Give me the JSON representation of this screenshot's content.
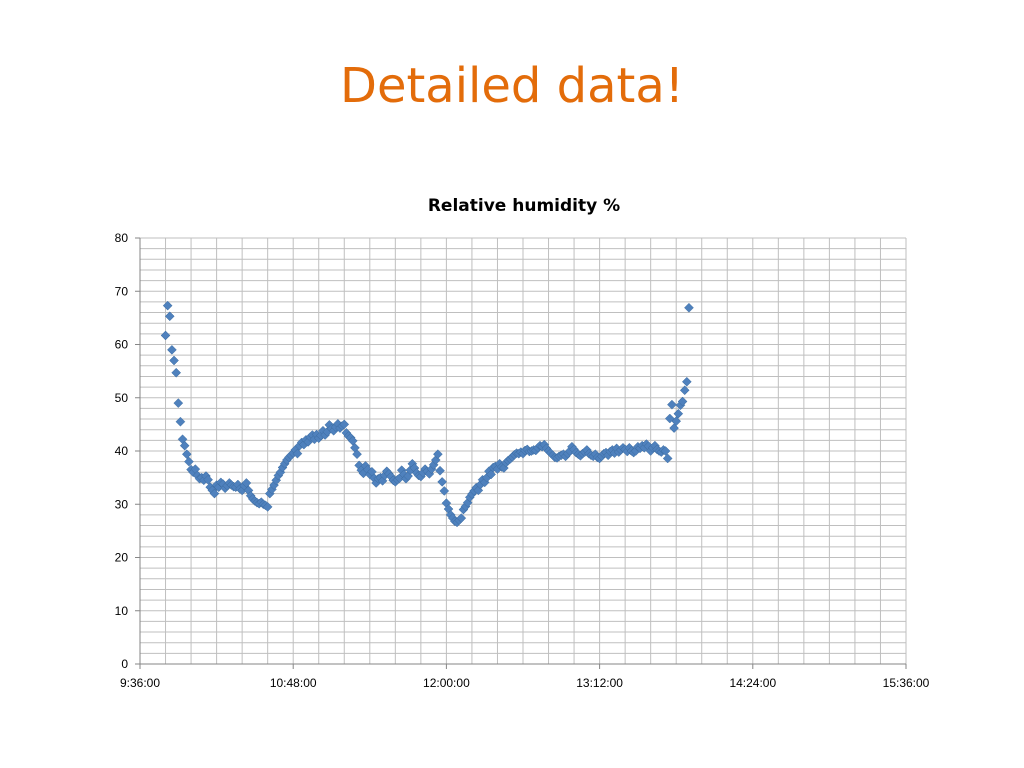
{
  "slide": {
    "title": "Detailed data!"
  },
  "colors": {
    "title": "#E36C0A",
    "marker": "#4F81BD",
    "grid": "#BFBFBF",
    "axis": "#868686"
  },
  "chart_data": {
    "type": "scatter",
    "title": "Relative humidity %",
    "xlabel": "",
    "ylabel": "",
    "marker": "diamond",
    "grid": true,
    "legend": "none",
    "xlim": [
      "9:36:00",
      "15:36:00"
    ],
    "ylim": [
      0,
      80
    ],
    "x_ticks": [
      "9:36:00",
      "10:48:00",
      "12:00:00",
      "13:12:00",
      "14:24:00",
      "15:36:00"
    ],
    "y_ticks": [
      "0",
      "10",
      "20",
      "30",
      "40",
      "50",
      "60",
      "70",
      "80"
    ],
    "series": [
      {
        "points": [
          [
            "9:48:00",
            61.7
          ],
          [
            "9:49:00",
            67.3
          ],
          [
            "9:50:00",
            65.3
          ],
          [
            "9:51:00",
            59.0
          ],
          [
            "9:52:00",
            57.0
          ],
          [
            "9:53:00",
            54.7
          ],
          [
            "9:54:00",
            49.0
          ],
          [
            "9:55:00",
            45.5
          ],
          [
            "9:56:00",
            42.2
          ],
          [
            "9:57:00",
            41.0
          ],
          [
            "9:58:00",
            39.4
          ],
          [
            "9:59:00",
            38.0
          ],
          [
            "10:00:00",
            36.5
          ],
          [
            "10:01:00",
            36.0
          ],
          [
            "10:02:00",
            36.6
          ],
          [
            "10:03:00",
            35.4
          ],
          [
            "10:04:00",
            34.8
          ],
          [
            "10:05:00",
            35.0
          ],
          [
            "10:06:00",
            34.5
          ],
          [
            "10:07:00",
            35.3
          ],
          [
            "10:08:00",
            34.6
          ],
          [
            "10:09:00",
            33.2
          ],
          [
            "10:10:00",
            32.6
          ],
          [
            "10:11:00",
            32.0
          ],
          [
            "10:12:00",
            33.6
          ],
          [
            "10:13:00",
            33.2
          ],
          [
            "10:14:00",
            34.1
          ],
          [
            "10:15:00",
            33.8
          ],
          [
            "10:16:00",
            33.0
          ],
          [
            "10:17:00",
            33.5
          ],
          [
            "10:18:00",
            34.0
          ],
          [
            "10:19:00",
            33.6
          ],
          [
            "10:20:00",
            33.3
          ],
          [
            "10:21:00",
            33.2
          ],
          [
            "10:22:00",
            33.7
          ],
          [
            "10:23:00",
            32.9
          ],
          [
            "10:24:00",
            32.6
          ],
          [
            "10:25:00",
            33.5
          ],
          [
            "10:26:00",
            34.0
          ],
          [
            "10:27:00",
            32.6
          ],
          [
            "10:28:00",
            31.6
          ],
          [
            "10:29:00",
            31.0
          ],
          [
            "10:30:00",
            30.6
          ],
          [
            "10:31:00",
            30.3
          ],
          [
            "10:32:00",
            30.1
          ],
          [
            "10:33:00",
            30.4
          ],
          [
            "10:34:00",
            30.0
          ],
          [
            "10:35:00",
            29.8
          ],
          [
            "10:36:00",
            29.5
          ],
          [
            "10:37:00",
            32.0
          ],
          [
            "10:38:00",
            32.8
          ],
          [
            "10:39:00",
            33.6
          ],
          [
            "10:40:00",
            34.5
          ],
          [
            "10:41:00",
            35.4
          ],
          [
            "10:42:00",
            36.0
          ],
          [
            "10:43:00",
            36.9
          ],
          [
            "10:44:00",
            37.6
          ],
          [
            "10:45:00",
            38.3
          ],
          [
            "10:46:00",
            38.8
          ],
          [
            "10:47:00",
            39.2
          ],
          [
            "10:48:00",
            39.6
          ],
          [
            "10:49:00",
            40.2
          ],
          [
            "10:50:00",
            39.5
          ],
          [
            "10:51:00",
            41.0
          ],
          [
            "10:52:00",
            41.6
          ],
          [
            "10:53:00",
            41.2
          ],
          [
            "10:54:00",
            42.1
          ],
          [
            "10:55:00",
            41.7
          ],
          [
            "10:56:00",
            42.6
          ],
          [
            "10:57:00",
            43.0
          ],
          [
            "10:58:00",
            42.2
          ],
          [
            "10:59:00",
            43.1
          ],
          [
            "11:00:00",
            42.4
          ],
          [
            "11:01:00",
            42.9
          ],
          [
            "11:02:00",
            43.8
          ],
          [
            "11:03:00",
            43.0
          ],
          [
            "11:04:00",
            43.6
          ],
          [
            "11:05:00",
            44.9
          ],
          [
            "11:06:00",
            44.2
          ],
          [
            "11:07:00",
            43.8
          ],
          [
            "11:08:00",
            44.5
          ],
          [
            "11:09:00",
            45.1
          ],
          [
            "11:10:00",
            44.3
          ],
          [
            "11:11:00",
            44.7
          ],
          [
            "11:12:00",
            45.0
          ],
          [
            "11:13:00",
            43.4
          ],
          [
            "11:14:00",
            42.8
          ],
          [
            "11:15:00",
            42.5
          ],
          [
            "11:16:00",
            41.9
          ],
          [
            "11:17:00",
            40.6
          ],
          [
            "11:18:00",
            39.4
          ],
          [
            "11:19:00",
            37.3
          ],
          [
            "11:20:00",
            36.4
          ],
          [
            "11:21:00",
            35.8
          ],
          [
            "11:22:00",
            37.2
          ],
          [
            "11:23:00",
            36.5
          ],
          [
            "11:24:00",
            35.6
          ],
          [
            "11:25:00",
            36.1
          ],
          [
            "11:26:00",
            34.9
          ],
          [
            "11:27:00",
            34.0
          ],
          [
            "11:28:00",
            34.8
          ],
          [
            "11:29:00",
            35.0
          ],
          [
            "11:30:00",
            34.4
          ],
          [
            "11:31:00",
            35.4
          ],
          [
            "11:32:00",
            36.2
          ],
          [
            "11:33:00",
            35.7
          ],
          [
            "11:34:00",
            35.2
          ],
          [
            "11:35:00",
            34.5
          ],
          [
            "11:36:00",
            34.2
          ],
          [
            "11:37:00",
            34.6
          ],
          [
            "11:38:00",
            34.9
          ],
          [
            "11:39:00",
            36.4
          ],
          [
            "11:40:00",
            35.6
          ],
          [
            "11:41:00",
            34.8
          ],
          [
            "11:42:00",
            35.3
          ],
          [
            "11:43:00",
            36.4
          ],
          [
            "11:44:00",
            37.6
          ],
          [
            "11:45:00",
            36.8
          ],
          [
            "11:46:00",
            35.9
          ],
          [
            "11:47:00",
            35.4
          ],
          [
            "11:48:00",
            35.2
          ],
          [
            "11:49:00",
            35.9
          ],
          [
            "11:50:00",
            36.6
          ],
          [
            "11:51:00",
            36.2
          ],
          [
            "11:52:00",
            35.7
          ],
          [
            "11:53:00",
            36.6
          ],
          [
            "11:54:00",
            37.4
          ],
          [
            "11:55:00",
            38.3
          ],
          [
            "11:56:00",
            39.4
          ],
          [
            "11:57:00",
            36.3
          ],
          [
            "11:58:00",
            34.2
          ],
          [
            "11:59:00",
            32.5
          ],
          [
            "12:00:00",
            30.2
          ],
          [
            "12:01:00",
            29.1
          ],
          [
            "12:02:00",
            28.0
          ],
          [
            "12:03:00",
            27.4
          ],
          [
            "12:04:00",
            26.8
          ],
          [
            "12:05:00",
            26.6
          ],
          [
            "12:06:00",
            27.0
          ],
          [
            "12:07:00",
            27.4
          ],
          [
            "12:08:00",
            29.0
          ],
          [
            "12:09:00",
            29.6
          ],
          [
            "12:10:00",
            30.3
          ],
          [
            "12:11:00",
            31.3
          ],
          [
            "12:12:00",
            31.9
          ],
          [
            "12:13:00",
            32.5
          ],
          [
            "12:14:00",
            33.1
          ],
          [
            "12:15:00",
            32.6
          ],
          [
            "12:16:00",
            33.7
          ],
          [
            "12:17:00",
            34.6
          ],
          [
            "12:18:00",
            34.1
          ],
          [
            "12:19:00",
            35.0
          ],
          [
            "12:20:00",
            36.2
          ],
          [
            "12:21:00",
            35.6
          ],
          [
            "12:22:00",
            36.9
          ],
          [
            "12:23:00",
            37.1
          ],
          [
            "12:24:00",
            36.6
          ],
          [
            "12:25:00",
            37.6
          ],
          [
            "12:26:00",
            37.0
          ],
          [
            "12:27:00",
            36.8
          ],
          [
            "12:28:00",
            37.8
          ],
          [
            "12:29:00",
            38.2
          ],
          [
            "12:30:00",
            38.5
          ],
          [
            "12:31:00",
            38.9
          ],
          [
            "12:32:00",
            39.3
          ],
          [
            "12:33:00",
            39.6
          ],
          [
            "12:34:00",
            39.5
          ],
          [
            "12:35:00",
            39.8
          ],
          [
            "12:36:00",
            39.5
          ],
          [
            "12:37:00",
            40.1
          ],
          [
            "12:38:00",
            40.3
          ],
          [
            "12:39:00",
            39.9
          ],
          [
            "12:40:00",
            40.0
          ],
          [
            "12:41:00",
            40.2
          ],
          [
            "12:42:00",
            40.1
          ],
          [
            "12:43:00",
            40.6
          ],
          [
            "12:44:00",
            41.0
          ],
          [
            "12:45:00",
            40.8
          ],
          [
            "12:46:00",
            41.2
          ],
          [
            "12:47:00",
            40.5
          ],
          [
            "12:48:00",
            40.0
          ],
          [
            "12:49:00",
            39.6
          ],
          [
            "12:50:00",
            39.2
          ],
          [
            "12:51:00",
            38.8
          ],
          [
            "12:52:00",
            38.7
          ],
          [
            "12:53:00",
            39.0
          ],
          [
            "12:54:00",
            39.2
          ],
          [
            "12:55:00",
            39.4
          ],
          [
            "12:56:00",
            39.0
          ],
          [
            "12:57:00",
            39.5
          ],
          [
            "12:58:00",
            40.0
          ],
          [
            "12:59:00",
            40.8
          ],
          [
            "13:00:00",
            40.3
          ],
          [
            "13:01:00",
            39.7
          ],
          [
            "13:02:00",
            39.4
          ],
          [
            "13:03:00",
            39.1
          ],
          [
            "13:04:00",
            39.5
          ],
          [
            "13:05:00",
            39.8
          ],
          [
            "13:06:00",
            40.2
          ],
          [
            "13:07:00",
            39.5
          ],
          [
            "13:08:00",
            39.2
          ],
          [
            "13:09:00",
            39.0
          ],
          [
            "13:10:00",
            39.4
          ],
          [
            "13:11:00",
            38.8
          ],
          [
            "13:12:00",
            38.6
          ],
          [
            "13:13:00",
            39.0
          ],
          [
            "13:14:00",
            39.5
          ],
          [
            "13:15:00",
            39.7
          ],
          [
            "13:16:00",
            39.2
          ],
          [
            "13:17:00",
            39.9
          ],
          [
            "13:18:00",
            40.2
          ],
          [
            "13:19:00",
            39.6
          ],
          [
            "13:20:00",
            40.5
          ],
          [
            "13:21:00",
            39.8
          ],
          [
            "13:22:00",
            40.2
          ],
          [
            "13:23:00",
            40.6
          ],
          [
            "13:24:00",
            40.3
          ],
          [
            "13:25:00",
            39.9
          ],
          [
            "13:26:00",
            40.6
          ],
          [
            "13:27:00",
            40.0
          ],
          [
            "13:28:00",
            39.7
          ],
          [
            "13:29:00",
            40.0
          ],
          [
            "13:30:00",
            40.8
          ],
          [
            "13:31:00",
            40.5
          ],
          [
            "13:32:00",
            41.0
          ],
          [
            "13:33:00",
            40.6
          ],
          [
            "13:34:00",
            41.3
          ],
          [
            "13:35:00",
            40.9
          ],
          [
            "13:36:00",
            40.0
          ],
          [
            "13:37:00",
            40.6
          ],
          [
            "13:38:00",
            41.0
          ],
          [
            "13:39:00",
            40.3
          ],
          [
            "13:40:00",
            40.0
          ],
          [
            "13:41:00",
            39.8
          ],
          [
            "13:42:00",
            40.2
          ],
          [
            "13:43:00",
            40.0
          ],
          [
            "13:44:00",
            38.6
          ],
          [
            "13:45:00",
            46.1
          ],
          [
            "13:46:00",
            48.7
          ],
          [
            "13:47:00",
            44.3
          ],
          [
            "13:48:00",
            45.6
          ],
          [
            "13:49:00",
            47.0
          ],
          [
            "13:50:00",
            48.6
          ],
          [
            "13:51:00",
            49.3
          ],
          [
            "13:52:00",
            51.4
          ],
          [
            "13:53:00",
            53.0
          ],
          [
            "13:54:00",
            66.9
          ]
        ]
      }
    ]
  }
}
